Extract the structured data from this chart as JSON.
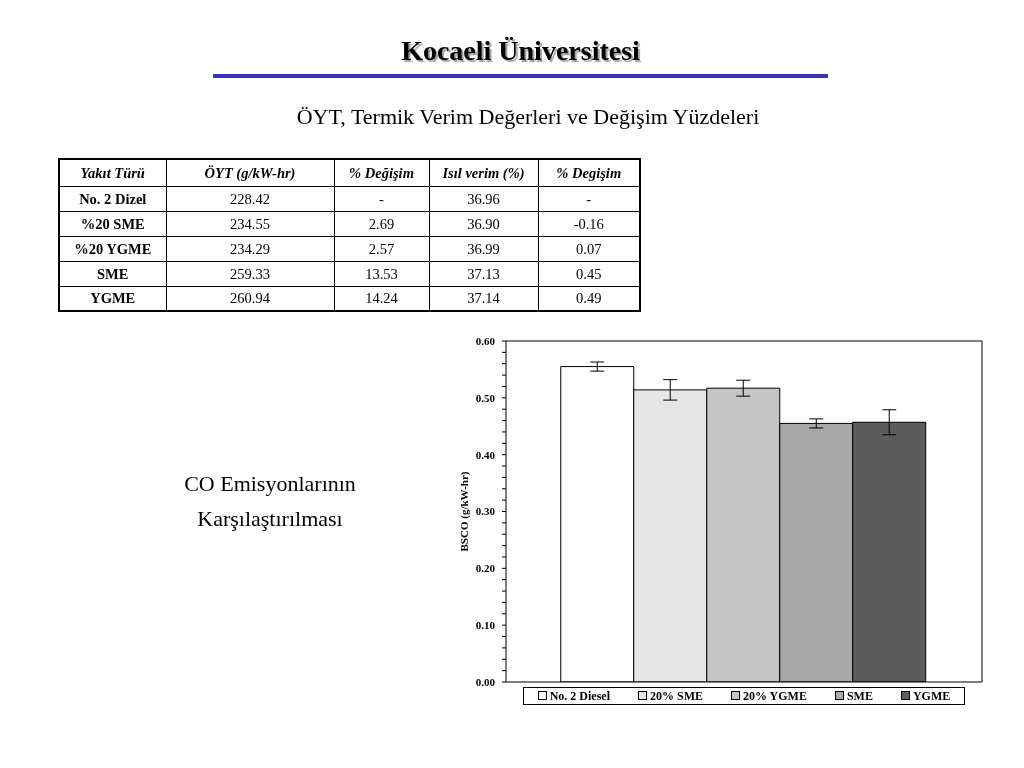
{
  "chart_data": [
    {
      "type": "other",
      "title": "Kocaeli Üniversitesi",
      "subtitle": "ÖYT, Termik Verim Değerleri ve Değişim Yüzdeleri",
      "ylabel": "Yakıt Türü",
      "categories": [
        "No. 2 Dizel",
        "%20 SME",
        "%20 YGME",
        "SME",
        "YGME"
      ],
      "data_labels": true,
      "series": [
        {
          "name": "ÖYT (g/kW-hr)",
          "values": [
            228.42,
            234.55,
            234.29,
            259.33,
            260.94
          ]
        },
        {
          "name": "% Değişim",
          "values": [
            null,
            2.69,
            2.57,
            13.53,
            14.24
          ],
          "value_labels": [
            "-",
            "2.69",
            "2.57",
            "13.53",
            "14.24"
          ]
        },
        {
          "name": "Isıl verim (%)",
          "values": [
            36.96,
            36.9,
            36.99,
            37.13,
            37.14
          ],
          "value_labels": [
            "36.96",
            "36.90",
            "36.99",
            "37.13",
            "37.14"
          ]
        },
        {
          "name": "% Degişim",
          "values": [
            null,
            -0.16,
            0.07,
            0.45,
            0.49
          ],
          "value_labels": [
            "-",
            "-0.16",
            "0.07",
            "0.45",
            "0.49"
          ]
        }
      ]
    },
    {
      "type": "bar",
      "title": "CO Emisyonlarının Karşılaştırılması",
      "ylabel": "BSCO (g/kW-hr)",
      "categories": [
        null
      ],
      "series": [
        {
          "name": "No. 2 Diesel",
          "color": "#ffffff",
          "values": [
            0.555
          ],
          "errors": [
            0.008
          ]
        },
        {
          "name": "20% SME",
          "color": "#e6e6e6",
          "values": [
            0.514
          ],
          "errors": [
            0.018
          ]
        },
        {
          "name": "20% YGME",
          "color": "#c4c4c4",
          "values": [
            0.517
          ],
          "errors": [
            0.014
          ]
        },
        {
          "name": "SME",
          "color": "#a8a8a8",
          "values": [
            0.455
          ],
          "errors": [
            0.008
          ]
        },
        {
          "name": "YGME",
          "color": "#5c5c5c",
          "values": [
            0.457
          ],
          "errors": [
            0.022
          ]
        }
      ],
      "ylim": [
        0,
        0.6
      ],
      "yticks": [
        {
          "value": 0,
          "label": "0.00"
        },
        {
          "value": 0.02,
          "label": null
        },
        {
          "value": 0.04,
          "label": null
        },
        {
          "value": 0.06,
          "label": null
        },
        {
          "value": 0.08,
          "label": null
        },
        {
          "value": 0.1,
          "label": "0.10"
        },
        {
          "value": 0.12,
          "label": null
        },
        {
          "value": 0.14,
          "label": null
        },
        {
          "value": 0.16,
          "label": null
        },
        {
          "value": 0.18,
          "label": null
        },
        {
          "value": 0.2,
          "label": "0.20"
        },
        {
          "value": 0.22,
          "label": null
        },
        {
          "value": 0.24,
          "label": null
        },
        {
          "value": 0.26,
          "label": null
        },
        {
          "value": 0.28,
          "label": null
        },
        {
          "value": 0.3,
          "label": "0.30"
        },
        {
          "value": 0.32,
          "label": null
        },
        {
          "value": 0.34,
          "label": null
        },
        {
          "value": 0.36,
          "label": null
        },
        {
          "value": 0.38,
          "label": null
        },
        {
          "value": 0.4,
          "label": "0.40"
        },
        {
          "value": 0.42,
          "label": null
        },
        {
          "value": 0.44,
          "label": null
        },
        {
          "value": 0.46,
          "label": null
        },
        {
          "value": 0.48,
          "label": null
        },
        {
          "value": 0.5,
          "label": "0.50"
        },
        {
          "value": 0.52,
          "label": null
        },
        {
          "value": 0.54,
          "label": null
        },
        {
          "value": 0.56,
          "label": null
        },
        {
          "value": 0.58,
          "label": null
        },
        {
          "value": 0.6,
          "label": "0.60"
        }
      ],
      "legend": "bottom"
    }
  ]
}
